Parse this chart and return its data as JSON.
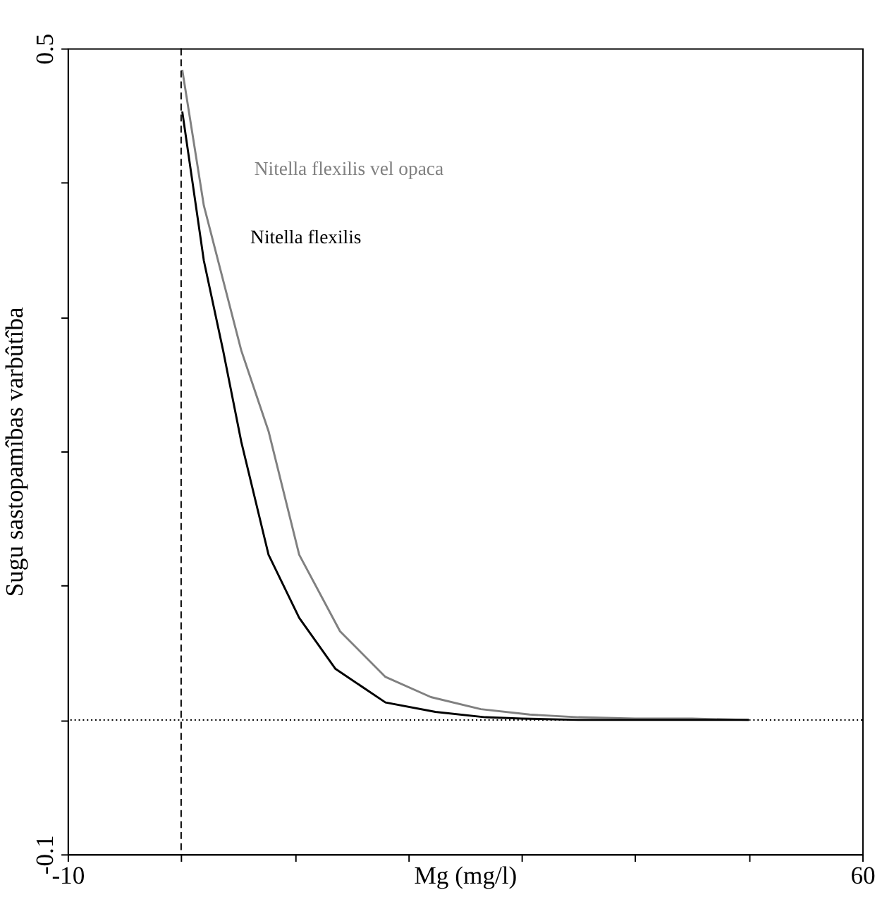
{
  "chart_data": {
    "type": "line",
    "xlabel": "Mg (mg/l)",
    "ylabel": "Sugu sastopamîbas varbûtîba",
    "xlim": [
      -10,
      60
    ],
    "xticks": [
      -10,
      {
        "value": 0,
        "label": null
      },
      {
        "value": 10,
        "label": null
      },
      {
        "value": 20,
        "label": null
      },
      {
        "value": 30,
        "label": null
      },
      {
        "value": 40,
        "label": null
      },
      {
        "value": 50,
        "label": null
      },
      60
    ],
    "ylim": [
      -0.1,
      0.5
    ],
    "yticks": [
      -0.1,
      {
        "value": 0,
        "label": null
      },
      {
        "value": 0.1,
        "label": null
      },
      {
        "value": 0.2,
        "label": null
      },
      {
        "value": 0.3,
        "label": null
      },
      {
        "value": 0.4,
        "label": null
      },
      0.5
    ],
    "grid": false,
    "legend": false,
    "marker": "none",
    "line_style": "solid",
    "ref_lines": [
      {
        "axis": "x",
        "value": 0,
        "line_style": "dashed"
      },
      {
        "axis": "y",
        "value": 0,
        "line_style": "dotted"
      }
    ],
    "series": [
      {
        "name": "Nitella flexilis vel opaca",
        "color": "#808080",
        "x": [
          0.1,
          2,
          5.3,
          7.7,
          10.4,
          14,
          18,
          22,
          26.4,
          30.7,
          35,
          40,
          45,
          50
        ],
        "values": [
          0.484,
          0.383,
          0.275,
          0.215,
          0.123,
          0.066,
          0.032,
          0.017,
          0.008,
          0.004,
          0.002,
          0.001,
          0.001,
          0
        ]
      },
      {
        "name": "Nitella flexilis",
        "color": "#000000",
        "x": [
          0.1,
          2,
          3.7,
          5.3,
          7.7,
          10.4,
          13.6,
          18,
          22.4,
          26.8,
          30,
          35,
          40,
          45,
          50
        ],
        "values": [
          0.453,
          0.342,
          0.275,
          0.207,
          0.123,
          0.076,
          0.038,
          0.013,
          0.006,
          0.002,
          0.001,
          0,
          0,
          0,
          0
        ]
      }
    ]
  }
}
